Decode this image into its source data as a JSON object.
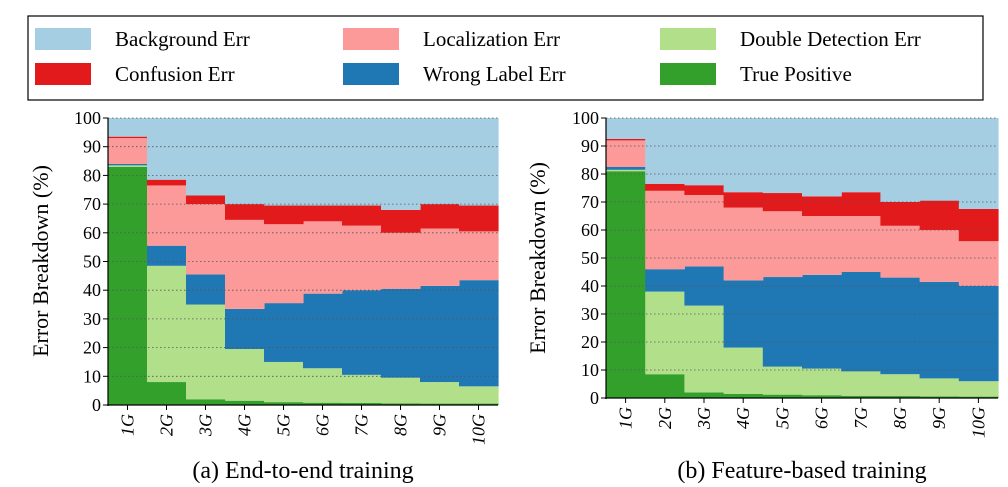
{
  "legend": {
    "entries": [
      {
        "label": "Background Err",
        "color": "#a6cee3"
      },
      {
        "label": "Localization Err",
        "color": "#fb9a99"
      },
      {
        "label": "Double Detection Err",
        "color": "#b2df8a"
      },
      {
        "label": "Confusion Err",
        "color": "#e31a1c"
      },
      {
        "label": "Wrong Label Err",
        "color": "#1f78b4"
      },
      {
        "label": "True Positive",
        "color": "#33a02c"
      }
    ]
  },
  "chart_data": [
    {
      "type": "stacked-area",
      "caption": "(a) End-to-end training",
      "ylabel": "Error Breakdown (%)",
      "xlabel": "",
      "ylim": [
        0,
        100
      ],
      "yticks": [
        0,
        10,
        20,
        30,
        40,
        50,
        60,
        70,
        80,
        90,
        100
      ],
      "grid": true,
      "categories": [
        "1",
        "2",
        "3",
        "4",
        "5",
        "6",
        "7",
        "8",
        "9",
        "10"
      ],
      "category_suffix": "G",
      "series": [
        {
          "name": "True Positive",
          "color": "#33a02c",
          "values": [
            83,
            8,
            2,
            1.5,
            1,
            0.8,
            0.7,
            0.6,
            0.5,
            0.5
          ]
        },
        {
          "name": "Double Detection Err",
          "color": "#b2df8a",
          "values": [
            0.5,
            40.5,
            33,
            18,
            14,
            12,
            9.8,
            8.9,
            7.5,
            6
          ]
        },
        {
          "name": "Wrong Label Err",
          "color": "#1f78b4",
          "values": [
            0.5,
            7,
            10.5,
            14,
            20.5,
            26,
            29.5,
            31,
            33.5,
            37
          ]
        },
        {
          "name": "Localization Err",
          "color": "#fb9a99",
          "values": [
            9,
            21,
            24.5,
            31,
            27.5,
            25.2,
            22.5,
            19.5,
            20,
            17
          ]
        },
        {
          "name": "Confusion Err",
          "color": "#e31a1c",
          "values": [
            0.5,
            2,
            3,
            5.5,
            6.5,
            5.5,
            7,
            8,
            8.5,
            9
          ]
        },
        {
          "name": "Background Err",
          "color": "#a6cee3",
          "values": [
            6.5,
            21.5,
            27,
            30,
            30.5,
            30.5,
            30.5,
            32,
            30,
            30.5
          ]
        }
      ]
    },
    {
      "type": "stacked-area",
      "caption": "(b) Feature-based training",
      "ylabel": "Error Breakdown (%)",
      "xlabel": "",
      "ylim": [
        0,
        100
      ],
      "yticks": [
        0,
        10,
        20,
        30,
        40,
        50,
        60,
        70,
        80,
        90,
        100
      ],
      "grid": true,
      "categories": [
        "1",
        "2",
        "3",
        "4",
        "5",
        "6",
        "7",
        "8",
        "9",
        "10"
      ],
      "category_suffix": "G",
      "series": [
        {
          "name": "True Positive",
          "color": "#33a02c",
          "values": [
            81,
            8.5,
            2,
            1.5,
            1.2,
            1,
            0.8,
            0.7,
            0.6,
            0.5
          ]
        },
        {
          "name": "Double Detection Err",
          "color": "#b2df8a",
          "values": [
            0.5,
            29.5,
            31,
            16.5,
            10,
            9.5,
            8.7,
            7.8,
            6.4,
            5.5
          ]
        },
        {
          "name": "Wrong Label Err",
          "color": "#1f78b4",
          "values": [
            1,
            8,
            14,
            24,
            32,
            33.5,
            35.5,
            34.5,
            34.5,
            34
          ]
        },
        {
          "name": "Localization Err",
          "color": "#fb9a99",
          "values": [
            9.5,
            28,
            25.5,
            26,
            23.5,
            21,
            20,
            18.5,
            18.5,
            16
          ]
        },
        {
          "name": "Confusion Err",
          "color": "#e31a1c",
          "values": [
            0.5,
            2.5,
            3.5,
            5.5,
            6.5,
            7,
            8.5,
            8.5,
            10.5,
            11.5
          ]
        },
        {
          "name": "Background Err",
          "color": "#a6cee3",
          "values": [
            7.5,
            23.5,
            24,
            26.5,
            26.8,
            28,
            26.5,
            30,
            29.5,
            32.5
          ]
        }
      ]
    }
  ]
}
